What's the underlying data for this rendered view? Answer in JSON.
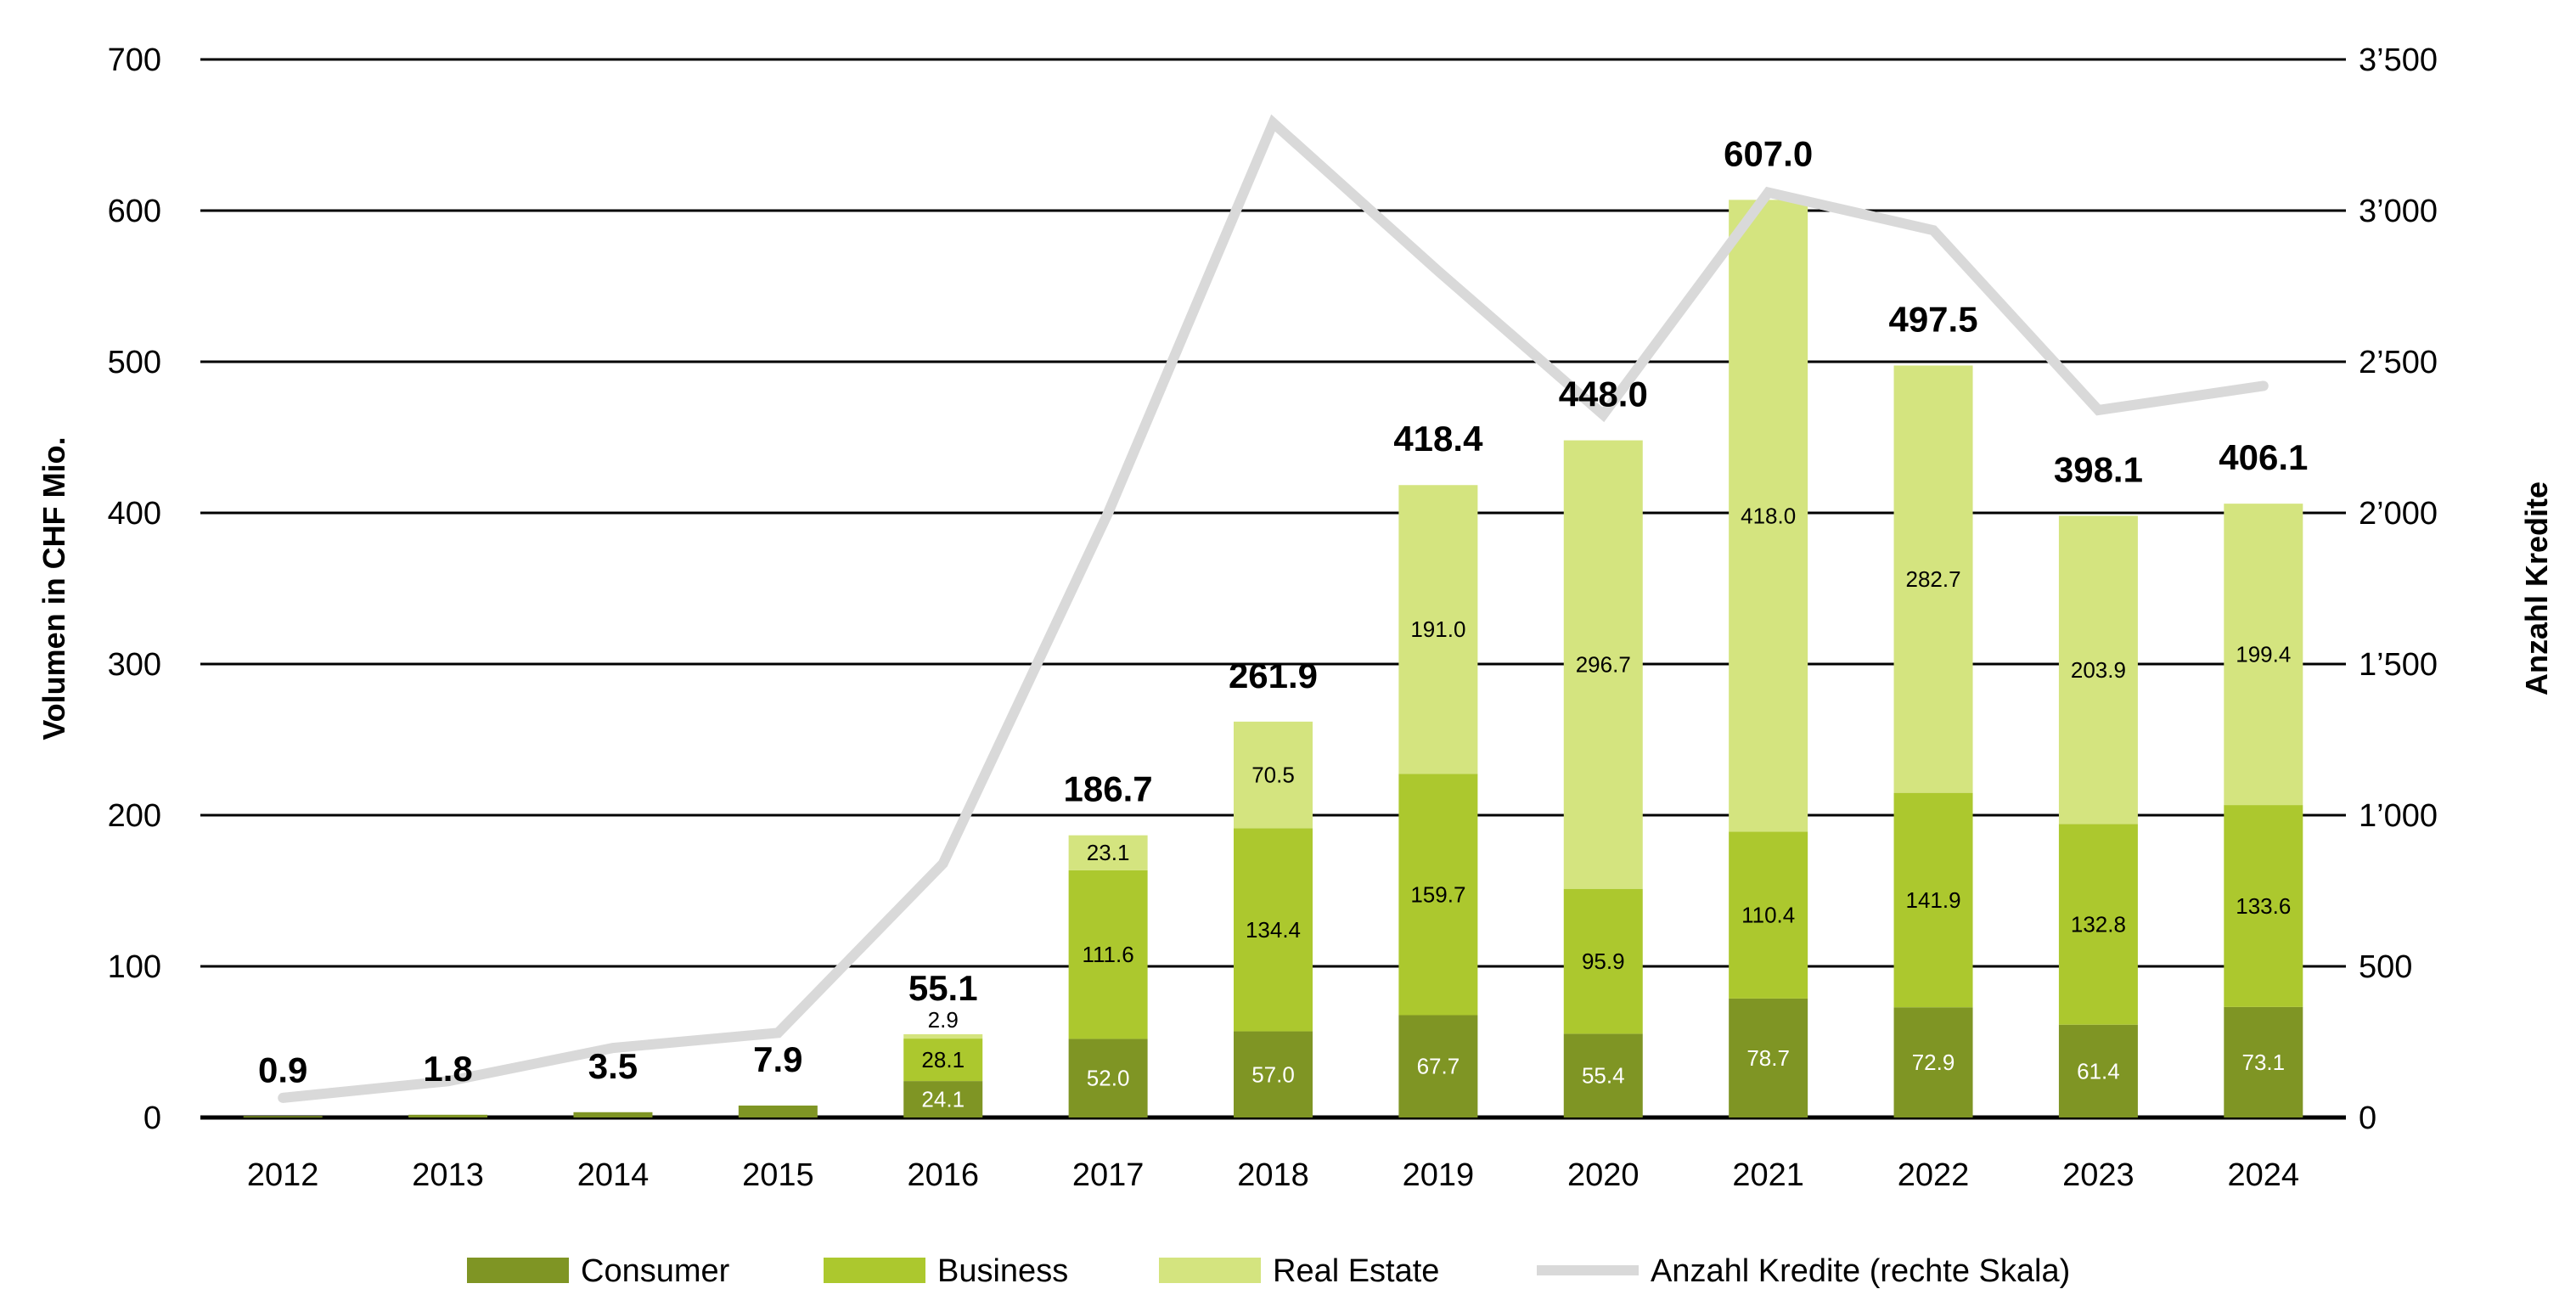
{
  "chart_data": {
    "type": "bar",
    "stacked": true,
    "categories": [
      "2012",
      "2013",
      "2014",
      "2015",
      "2016",
      "2017",
      "2018",
      "2019",
      "2020",
      "2021",
      "2022",
      "2023",
      "2024"
    ],
    "series": [
      {
        "name": "Consumer",
        "color": "#7f9524",
        "values": [
          0.9,
          1.8,
          3.5,
          7.9,
          24.1,
          52.0,
          57.0,
          67.7,
          55.4,
          78.7,
          72.9,
          61.4,
          73.1
        ],
        "labels": [
          null,
          null,
          null,
          null,
          "24.1",
          "52.0",
          "57.0",
          "67.7",
          "55.4",
          "78.7",
          "72.9",
          "61.4",
          "73.1"
        ]
      },
      {
        "name": "Business",
        "color": "#acc82e",
        "values": [
          0,
          0,
          0,
          0,
          28.1,
          111.6,
          134.4,
          159.7,
          95.9,
          110.4,
          141.9,
          132.8,
          133.6
        ],
        "labels": [
          null,
          null,
          null,
          null,
          "28.1",
          "111.6",
          "134.4",
          "159.7",
          "95.9",
          "110.4",
          "141.9",
          "132.8",
          "133.6"
        ]
      },
      {
        "name": "Real Estate",
        "color": "#d4e47f",
        "values": [
          0,
          0,
          0,
          0,
          2.9,
          23.1,
          70.5,
          191.0,
          296.7,
          418.0,
          282.7,
          203.9,
          199.4
        ],
        "labels": [
          null,
          null,
          null,
          null,
          "2.9",
          "23.1",
          "70.5",
          "191.0",
          "296.7",
          "418.0",
          "282.7",
          "203.9",
          "199.4"
        ]
      }
    ],
    "totals": [
      "0.9",
      "1.8",
      "3.5",
      "7.9",
      "55.1",
      "186.7",
      "261.9",
      "418.4",
      "448.0",
      "607.0",
      "497.5",
      "398.1",
      "406.1"
    ],
    "line": {
      "name": "Anzahl Kredite (rechte Skala)",
      "color": "#d9d9d9",
      "axis": "right",
      "values": [
        65,
        120,
        230,
        280,
        840,
        2000,
        3290,
        2800,
        2325,
        3060,
        2935,
        2340,
        2420
      ]
    },
    "ylabel": "Volumen in CHF Mio.",
    "y2label": "Anzahl Kredite",
    "ylim": [
      0,
      700
    ],
    "y2lim": [
      0,
      3500
    ],
    "yticks": [
      "0",
      "100",
      "200",
      "300",
      "400",
      "500",
      "600",
      "700"
    ],
    "y2ticks": [
      "0",
      "500",
      "1’000",
      "1’500",
      "2’000",
      "2’500",
      "3’000",
      "3’500"
    ],
    "grid": true,
    "legend_position": "bottom"
  }
}
